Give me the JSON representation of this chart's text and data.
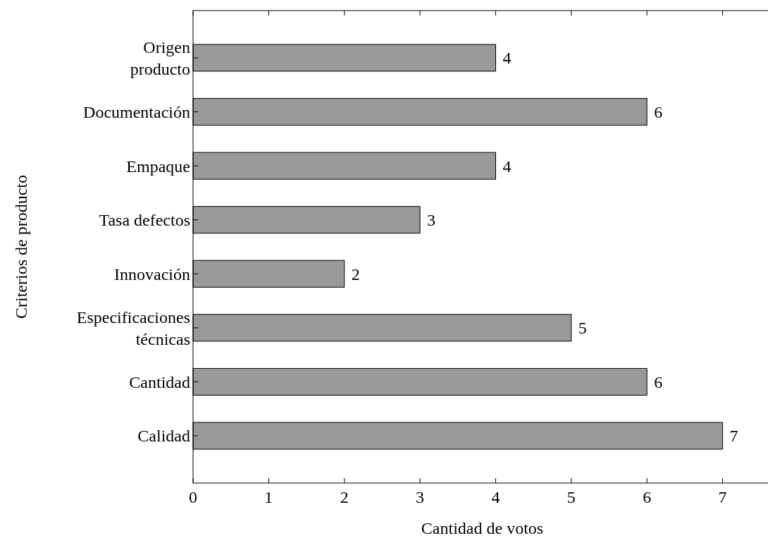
{
  "chart_data": {
    "type": "bar",
    "orientation": "horizontal",
    "xlabel": "Cantidad de votos",
    "ylabel": "Criterios de producto",
    "categories": [
      "Origen producto",
      "Documentación",
      "Empaque",
      "Tasa defectos",
      "Innovación",
      "Especificaciones técnicas",
      "Cantidad",
      "Calidad"
    ],
    "values": [
      4,
      6,
      4,
      3,
      2,
      5,
      6,
      7
    ],
    "color": "#999999",
    "xlim": [
      0,
      7.6
    ],
    "xticks": [
      0,
      1,
      2,
      3,
      4,
      5,
      6,
      7
    ],
    "data_labels": true,
    "grid": false
  }
}
